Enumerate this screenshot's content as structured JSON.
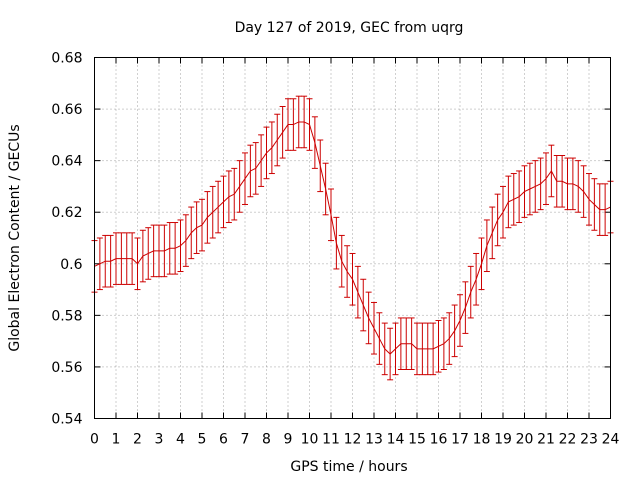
{
  "chart_data": {
    "type": "line",
    "title": "Day 127 of 2019, GEC from uqrg",
    "xlabel": "GPS time / hours",
    "ylabel": "Global Electron Content / GECUs",
    "xlim": [
      0,
      24
    ],
    "ylim": [
      0.54,
      0.68
    ],
    "xticks": [
      "0",
      "1",
      "2",
      "3",
      "4",
      "5",
      "6",
      "7",
      "8",
      "9",
      "10",
      "11",
      "12",
      "13",
      "14",
      "15",
      "16",
      "17",
      "18",
      "19",
      "20",
      "21",
      "22",
      "23",
      "24"
    ],
    "yticks": [
      "0.54",
      "0.56",
      "0.58",
      "0.6",
      "0.62",
      "0.64",
      "0.66",
      "0.68"
    ],
    "grid": true,
    "color": "#cc0000",
    "error_half_width": 0.01,
    "series": [
      {
        "name": "GEC",
        "x": [
          0,
          0.25,
          0.5,
          0.75,
          1,
          1.25,
          1.5,
          1.75,
          2,
          2.25,
          2.5,
          2.75,
          3,
          3.25,
          3.5,
          3.75,
          4,
          4.25,
          4.5,
          4.75,
          5,
          5.25,
          5.5,
          5.75,
          6,
          6.25,
          6.5,
          6.75,
          7,
          7.25,
          7.5,
          7.75,
          8,
          8.25,
          8.5,
          8.75,
          9,
          9.25,
          9.5,
          9.75,
          10,
          10.25,
          10.5,
          10.75,
          11,
          11.25,
          11.5,
          11.75,
          12,
          12.25,
          12.5,
          12.75,
          13,
          13.25,
          13.5,
          13.75,
          14,
          14.25,
          14.5,
          14.75,
          15,
          15.25,
          15.5,
          15.75,
          16,
          16.25,
          16.5,
          16.75,
          17,
          17.25,
          17.5,
          17.75,
          18,
          18.25,
          18.5,
          18.75,
          19,
          19.25,
          19.5,
          19.75,
          20,
          20.25,
          20.5,
          20.75,
          21,
          21.25,
          21.5,
          21.75,
          22,
          22.25,
          22.5,
          22.75,
          23,
          23.25,
          23.5,
          23.75,
          24
        ],
        "values": [
          0.599,
          0.6,
          0.601,
          0.601,
          0.602,
          0.602,
          0.602,
          0.602,
          0.6,
          0.603,
          0.604,
          0.605,
          0.605,
          0.605,
          0.606,
          0.606,
          0.607,
          0.609,
          0.612,
          0.614,
          0.615,
          0.618,
          0.62,
          0.622,
          0.624,
          0.626,
          0.627,
          0.63,
          0.633,
          0.636,
          0.637,
          0.64,
          0.643,
          0.645,
          0.648,
          0.651,
          0.654,
          0.654,
          0.655,
          0.655,
          0.654,
          0.647,
          0.638,
          0.629,
          0.619,
          0.608,
          0.601,
          0.597,
          0.594,
          0.589,
          0.584,
          0.579,
          0.575,
          0.571,
          0.567,
          0.565,
          0.567,
          0.569,
          0.569,
          0.569,
          0.567,
          0.567,
          0.567,
          0.567,
          0.568,
          0.569,
          0.571,
          0.574,
          0.578,
          0.583,
          0.589,
          0.594,
          0.6,
          0.607,
          0.612,
          0.617,
          0.62,
          0.624,
          0.625,
          0.626,
          0.628,
          0.629,
          0.63,
          0.631,
          0.633,
          0.636,
          0.632,
          0.632,
          0.631,
          0.631,
          0.63,
          0.628,
          0.625,
          0.623,
          0.621,
          0.621,
          0.622
        ]
      }
    ]
  }
}
